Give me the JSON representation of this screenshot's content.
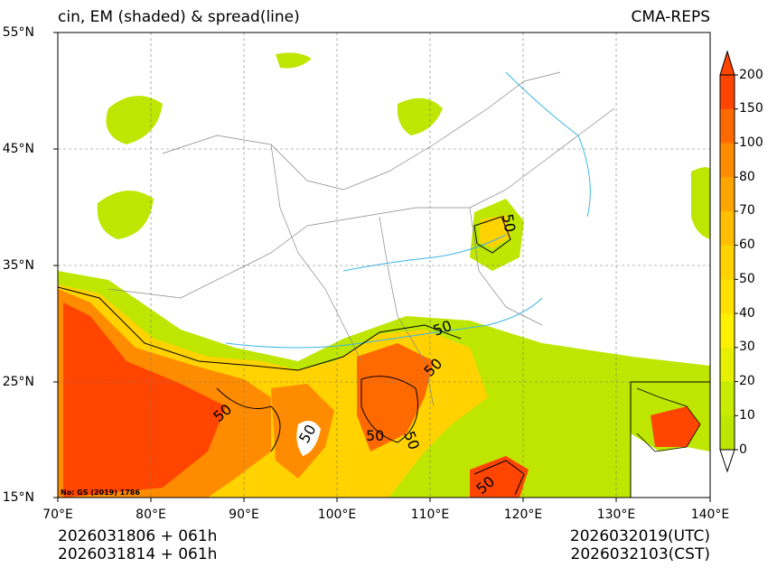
{
  "title_left": "cin, EM (shaded) & spread(line)",
  "title_right": "CMA-REPS",
  "map": {
    "lat_labels": [
      "55°N",
      "45°N",
      "35°N",
      "25°N",
      "15°N"
    ],
    "lon_labels": [
      "70°E",
      "80°E",
      "90°E",
      "100°E",
      "110°E",
      "120°E",
      "130°E",
      "140°E"
    ],
    "watermark": "No: GS (2019) 1786",
    "contour_label": "50",
    "contour_labels": [
      "50",
      "50",
      "50",
      "50",
      "50",
      "50",
      "50",
      "50"
    ]
  },
  "colorbar": {
    "labels": [
      "200",
      "150",
      "100",
      "80",
      "70",
      "60",
      "50",
      "40",
      "30",
      "20",
      "10",
      "0"
    ],
    "colors": [
      "#ff4500",
      "#ff6a00",
      "#ff8c00",
      "#ffa500",
      "#ffbf00",
      "#ffd200",
      "#ffe000",
      "#fff000",
      "#e6f000",
      "#c8ec00",
      "#bfe600"
    ]
  },
  "footer": {
    "init_utc": "2026031806  +  061h",
    "init_cst": "2026031814  +  061h",
    "valid_utc": "2026032019(UTC)",
    "valid_cst": "2026032103(CST)"
  }
}
